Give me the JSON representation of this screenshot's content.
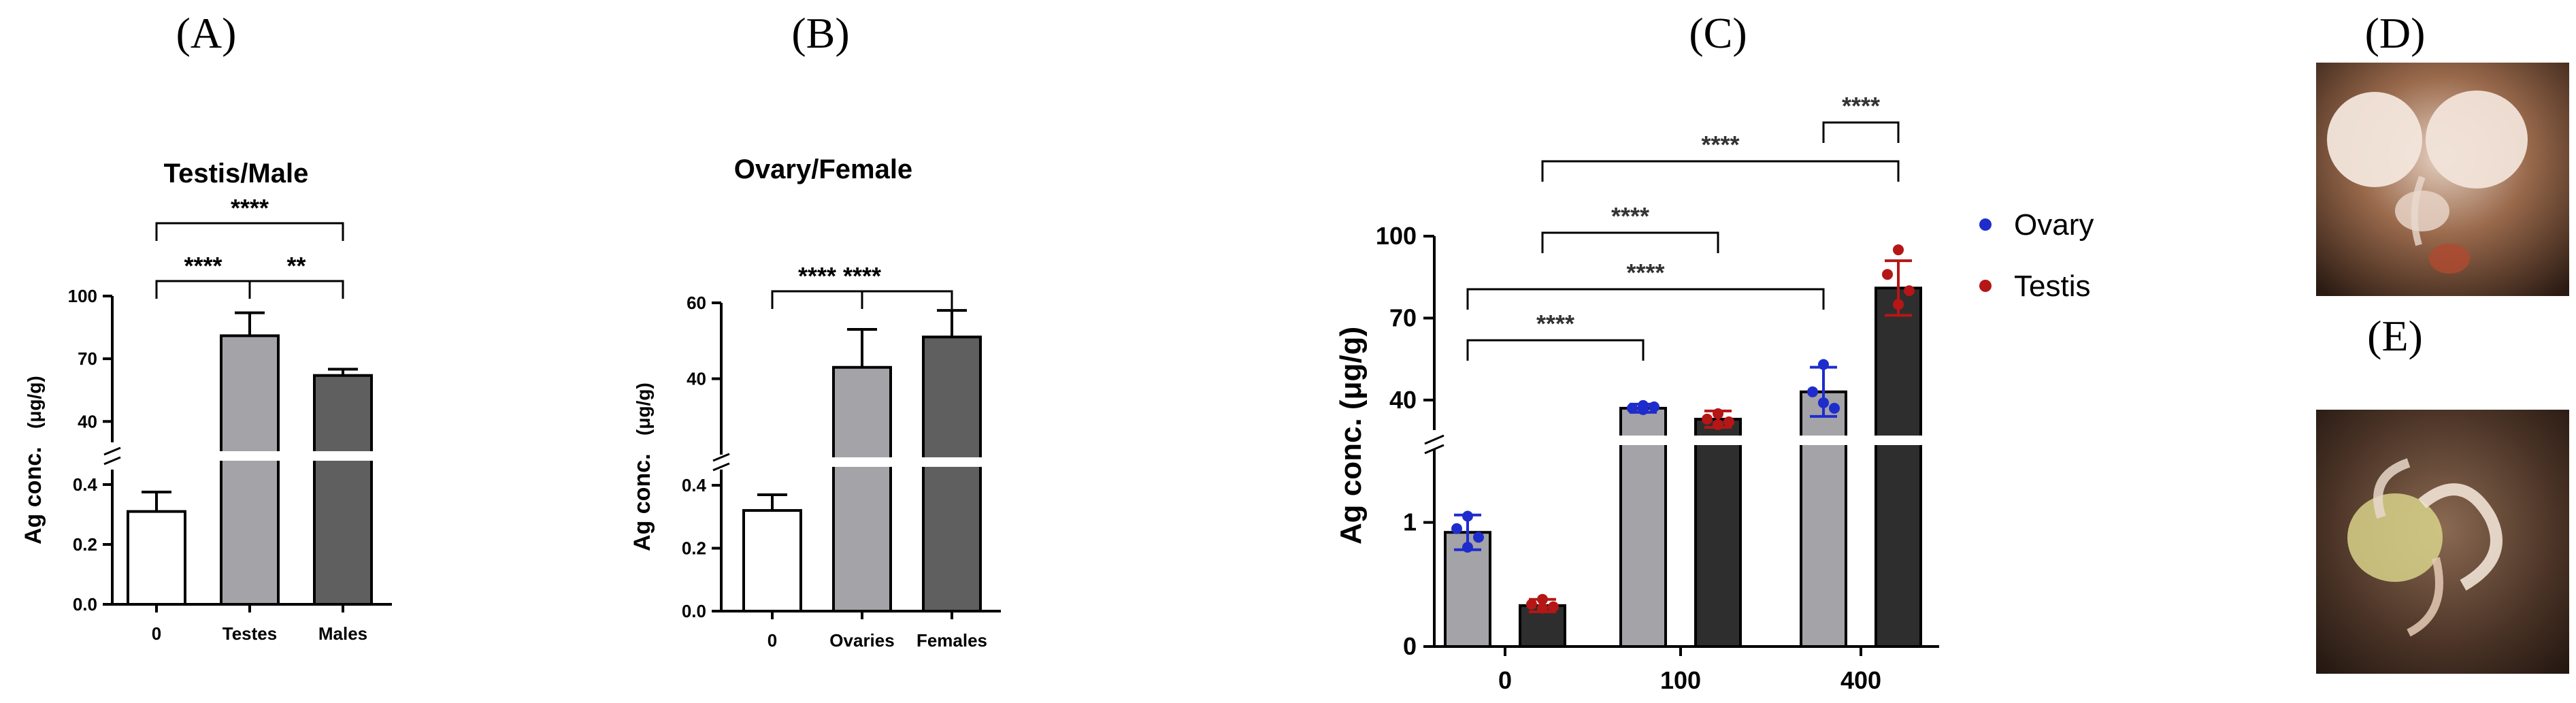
{
  "panel_labels": {
    "a": "(A)",
    "b": "(B)",
    "c": "(C)",
    "d": "(D)",
    "e": "(E)"
  },
  "colors": {
    "white_bar": "#ffffff",
    "light_bar": "#a3a3a8",
    "dark_bar": "#5f5f5f",
    "black_bar": "#2e2e2e",
    "ovary_dot": "#1f2ccc",
    "testis_dot": "#b51616"
  },
  "chart_data": [
    {
      "id": "A",
      "type": "bar",
      "title": "Testis/Male",
      "ylabel": "Ag conc.",
      "yunit": "(μg/g)",
      "categories": [
        "0",
        "Testes",
        "Males"
      ],
      "values": [
        0.31,
        81,
        62
      ],
      "errors": [
        0.065,
        11,
        3
      ],
      "yaxis_segments": [
        {
          "range": [
            0,
            0.45
          ],
          "ticks": [
            0,
            0.2,
            0.4
          ],
          "tick_labels": [
            "0.0",
            "0.2",
            "0.4"
          ]
        },
        {
          "range": [
            30,
            100
          ],
          "ticks": [
            40,
            70,
            100
          ],
          "tick_labels": [
            "40",
            "70",
            "100"
          ]
        }
      ],
      "significance": [
        {
          "from": 0,
          "to": 1,
          "label": "****"
        },
        {
          "from": 1,
          "to": 2,
          "label": "**"
        },
        {
          "from": 0,
          "to": 2,
          "label": "****"
        }
      ]
    },
    {
      "id": "B",
      "type": "bar",
      "title": "Ovary/Female",
      "ylabel": "Ag conc.",
      "yunit": "(μg/g)",
      "categories": [
        "0",
        "Ovaries",
        "Females"
      ],
      "values": [
        0.32,
        43,
        51
      ],
      "errors": [
        0.05,
        10,
        7
      ],
      "yaxis_segments": [
        {
          "range": [
            0,
            0.45
          ],
          "ticks": [
            0,
            0.2,
            0.4
          ],
          "tick_labels": [
            "0.0",
            "0.2",
            "0.4"
          ]
        },
        {
          "range": [
            20,
            60
          ],
          "ticks": [
            40,
            60
          ],
          "tick_labels": [
            "40",
            "60"
          ]
        }
      ],
      "significance": [
        {
          "from": 0,
          "to": 1,
          "label": "****"
        },
        {
          "from": 0,
          "to": 2,
          "label": "****"
        }
      ]
    },
    {
      "id": "C",
      "type": "bar",
      "ylabel": "Ag conc. (μg/g)",
      "categories": [
        "0",
        "100",
        "400"
      ],
      "series": [
        {
          "name": "Ovary",
          "values": [
            0.92,
            37,
            43
          ],
          "errors": [
            0.14,
            1.5,
            9
          ],
          "points": [
            [
              1.05,
              0.95,
              0.88,
              0.8
            ],
            [
              38,
              37,
              37.5,
              36.5
            ],
            [
              53,
              43,
              37,
              39
            ]
          ]
        },
        {
          "name": "Testis",
          "values": [
            0.33,
            33,
            81
          ],
          "errors": [
            0.05,
            3,
            10
          ],
          "points": [
            [
              0.38,
              0.34,
              0.32,
              0.31
            ],
            [
              35,
              33,
              32,
              31
            ],
            [
              95,
              86,
              80,
              75
            ]
          ]
        }
      ],
      "yaxis_segments": [
        {
          "range": [
            0,
            1.7
          ],
          "ticks": [
            0,
            1
          ],
          "tick_labels": [
            "0",
            "1"
          ]
        },
        {
          "range": [
            27,
            100
          ],
          "ticks": [
            40,
            70,
            100
          ],
          "tick_labels": [
            "40",
            "70",
            "100"
          ]
        }
      ],
      "significance": [
        {
          "from": "0-Ovary",
          "to": "100-Ovary",
          "label": "****"
        },
        {
          "from": "0-Ovary",
          "to": "400-Ovary",
          "label": "****"
        },
        {
          "from": "0-Testis",
          "to": "100-Testis",
          "label": "****"
        },
        {
          "from": "0-Testis",
          "to": "400-Testis",
          "label": "****"
        },
        {
          "from": "400-Ovary",
          "to": "400-Testis",
          "label": "****"
        }
      ],
      "legend": [
        "Ovary",
        "Testis"
      ]
    }
  ]
}
